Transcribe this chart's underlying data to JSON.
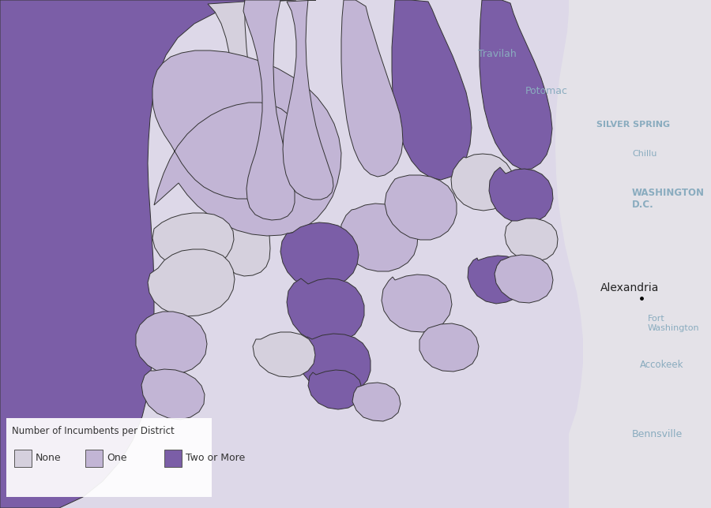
{
  "colors": {
    "none": "#d5d0dd",
    "one": "#c2b5d5",
    "two_or_more": "#7b5ea7",
    "bg_lavender": "#ddd8e8",
    "bg_gray_md": "#e4e2e8",
    "bg_white": "#f0eef4",
    "border": "#2a2a2a",
    "text_blue": "#8aacbf",
    "text_dark": "#222222",
    "legend_bg": "#ffffff"
  },
  "legend_title": "Number of Incumbents per District",
  "legend_items": [
    "None",
    "One",
    "Two or More"
  ],
  "figsize": [
    9.0,
    6.44
  ],
  "dpi": 100,
  "xlim": [
    0,
    900
  ],
  "ylim": [
    0,
    644
  ]
}
